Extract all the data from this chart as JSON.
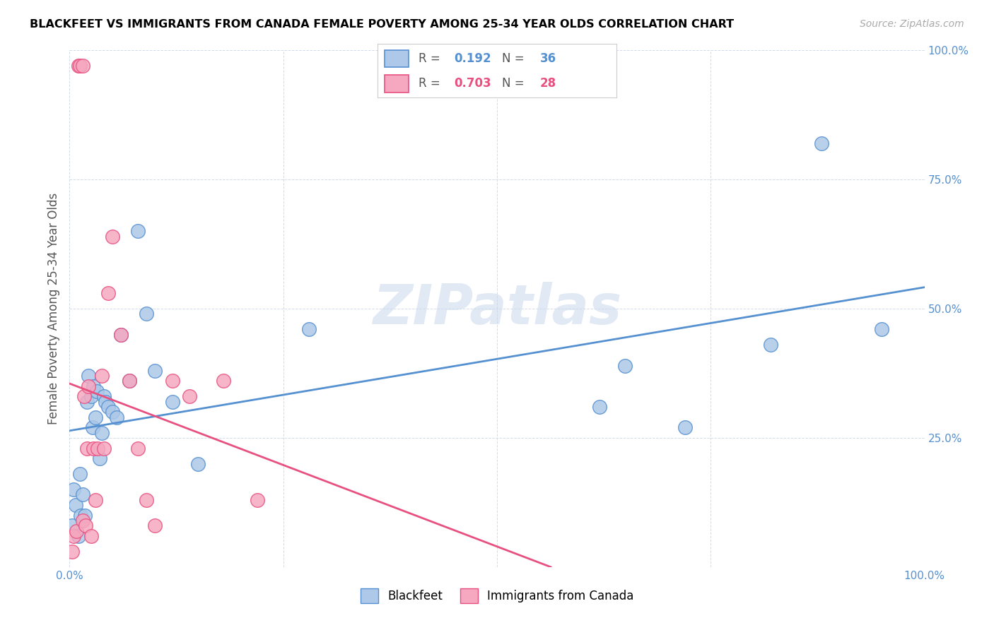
{
  "title": "BLACKFEET VS IMMIGRANTS FROM CANADA FEMALE POVERTY AMONG 25-34 YEAR OLDS CORRELATION CHART",
  "source": "Source: ZipAtlas.com",
  "ylabel": "Female Poverty Among 25-34 Year Olds",
  "xlim": [
    0,
    1.0
  ],
  "ylim": [
    0,
    1.0
  ],
  "blue_color": "#adc8e8",
  "pink_color": "#f5a8c0",
  "blue_line_color": "#5590d0",
  "pink_line_color": "#e85080",
  "R_blue": 0.192,
  "N_blue": 36,
  "R_pink": 0.703,
  "N_pink": 28,
  "watermark": "ZIPatlas",
  "blackfeet_x": [
    0.003,
    0.005,
    0.007,
    0.01,
    0.012,
    0.013,
    0.015,
    0.018,
    0.02,
    0.022,
    0.025,
    0.027,
    0.028,
    0.03,
    0.032,
    0.035,
    0.038,
    0.04,
    0.042,
    0.045,
    0.05,
    0.055,
    0.06,
    0.07,
    0.08,
    0.09,
    0.1,
    0.12,
    0.15,
    0.28,
    0.62,
    0.65,
    0.72,
    0.82,
    0.88,
    0.95
  ],
  "blackfeet_y": [
    0.08,
    0.15,
    0.12,
    0.06,
    0.18,
    0.1,
    0.14,
    0.1,
    0.32,
    0.37,
    0.33,
    0.27,
    0.35,
    0.29,
    0.34,
    0.21,
    0.26,
    0.33,
    0.32,
    0.31,
    0.3,
    0.29,
    0.45,
    0.36,
    0.65,
    0.49,
    0.38,
    0.32,
    0.2,
    0.46,
    0.31,
    0.39,
    0.27,
    0.43,
    0.82,
    0.46
  ],
  "canada_x": [
    0.003,
    0.005,
    0.008,
    0.01,
    0.012,
    0.015,
    0.015,
    0.017,
    0.019,
    0.02,
    0.022,
    0.025,
    0.028,
    0.03,
    0.033,
    0.038,
    0.04,
    0.045,
    0.05,
    0.06,
    0.07,
    0.08,
    0.09,
    0.1,
    0.12,
    0.14,
    0.18,
    0.22
  ],
  "canada_y": [
    0.03,
    0.06,
    0.07,
    0.97,
    0.97,
    0.97,
    0.09,
    0.33,
    0.08,
    0.23,
    0.35,
    0.06,
    0.23,
    0.13,
    0.23,
    0.37,
    0.23,
    0.53,
    0.64,
    0.45,
    0.36,
    0.23,
    0.13,
    0.08,
    0.36,
    0.33,
    0.36,
    0.13
  ]
}
